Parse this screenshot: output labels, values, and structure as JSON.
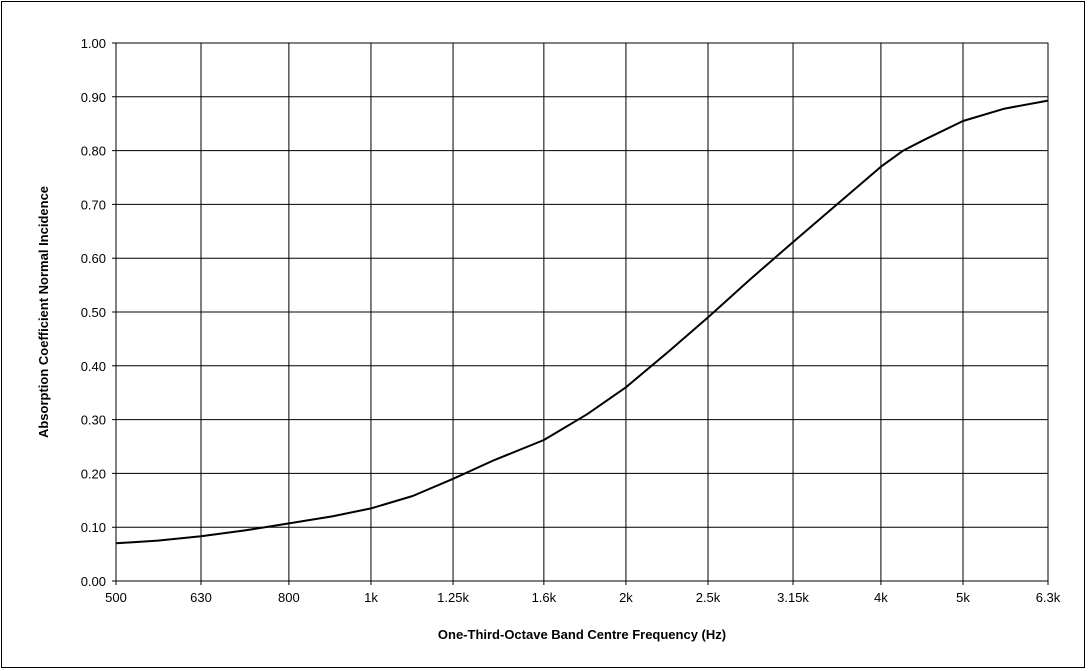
{
  "chart_data": {
    "type": "line",
    "title": "",
    "xlabel": "One-Third-Octave Band Centre Frequency (Hz)",
    "ylabel": "Absorption Coefficient Normal Incidence",
    "x_scale": "log",
    "categories": [
      "500",
      "630",
      "800",
      "1k",
      "1.25k",
      "1.6k",
      "2k",
      "2.5k",
      "3.15k",
      "4k",
      "5k",
      "6.3k"
    ],
    "x_ticks_hz": [
      500,
      630,
      800,
      1000,
      1250,
      1600,
      2000,
      2500,
      3150,
      4000,
      5000,
      6300
    ],
    "y_ticks": [
      "0.00",
      "0.10",
      "0.20",
      "0.30",
      "0.40",
      "0.50",
      "0.60",
      "0.70",
      "0.80",
      "0.90",
      "1.00"
    ],
    "ylim": [
      0,
      1
    ],
    "grid": true,
    "series": [
      {
        "x": [
          500,
          560,
          630,
          710,
          800,
          900,
          1000,
          1120,
          1250,
          1400,
          1600,
          1800,
          2000,
          2240,
          2500,
          2800,
          3150,
          3550,
          4000,
          4250,
          4500,
          5000,
          5600,
          6300
        ],
        "values": [
          0.07,
          0.075,
          0.083,
          0.094,
          0.107,
          0.12,
          0.135,
          0.158,
          0.19,
          0.225,
          0.262,
          0.31,
          0.36,
          0.425,
          0.49,
          0.56,
          0.63,
          0.7,
          0.77,
          0.8,
          0.82,
          0.855,
          0.878,
          0.893
        ]
      }
    ],
    "colors": {
      "line": "#000000",
      "grid": "#000000"
    }
  }
}
